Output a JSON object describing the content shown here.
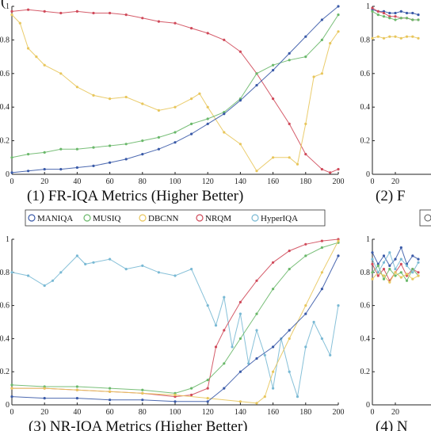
{
  "figure_label": "(",
  "colors": {
    "MANIQA": "#3a5aa8",
    "MUSIQ": "#6ab86a",
    "DBCNN": "#e8c65c",
    "NRQM": "#d04a5a",
    "HyperIQA": "#79b9d4"
  },
  "legend": {
    "items": [
      {
        "name": "MANIQA",
        "color": "#3a5aa8"
      },
      {
        "name": "MUSIQ",
        "color": "#6ab86a"
      },
      {
        "name": "DBCNN",
        "color": "#e8c65c"
      },
      {
        "name": "NRQM",
        "color": "#d04a5a"
      },
      {
        "name": "HyperIQA",
        "color": "#79b9d4"
      }
    ]
  },
  "chart_data": [
    {
      "type": "line",
      "title": "(1) FR-IQA Metrics (Higher Better)",
      "xlabel": "",
      "ylabel": "",
      "xlim": [
        0,
        200
      ],
      "ylim": [
        0,
        1
      ],
      "xticks": [
        0,
        20,
        40,
        60,
        80,
        100,
        120,
        140,
        160,
        180,
        200
      ],
      "yticks": [
        0,
        0.2,
        0.4,
        0.6,
        0.8,
        1
      ],
      "ytick_labels": [
        "0",
        "0.2",
        "0.4",
        "0.6",
        "0.8",
        "1"
      ],
      "grid": false,
      "series": [
        {
          "color": "#d04a5a",
          "x": [
            0,
            10,
            20,
            30,
            40,
            50,
            60,
            70,
            80,
            90,
            100,
            110,
            120,
            130,
            140,
            150,
            160,
            170,
            180,
            190,
            195,
            200
          ],
          "y": [
            0.97,
            0.98,
            0.97,
            0.96,
            0.97,
            0.96,
            0.96,
            0.95,
            0.93,
            0.91,
            0.9,
            0.87,
            0.84,
            0.8,
            0.73,
            0.6,
            0.45,
            0.3,
            0.12,
            0.03,
            0.01,
            0.03
          ]
        },
        {
          "color": "#e8c65c",
          "x": [
            0,
            5,
            10,
            15,
            20,
            30,
            40,
            50,
            60,
            70,
            80,
            90,
            100,
            110,
            115,
            120,
            130,
            140,
            150,
            160,
            170,
            175,
            180,
            185,
            190,
            195,
            200
          ],
          "y": [
            0.95,
            0.9,
            0.75,
            0.7,
            0.65,
            0.6,
            0.52,
            0.47,
            0.45,
            0.46,
            0.42,
            0.38,
            0.4,
            0.45,
            0.48,
            0.4,
            0.25,
            0.18,
            0.02,
            0.1,
            0.1,
            0.06,
            0.3,
            0.58,
            0.6,
            0.78,
            0.85
          ]
        },
        {
          "color": "#6ab86a",
          "x": [
            0,
            10,
            20,
            30,
            40,
            50,
            60,
            70,
            80,
            90,
            100,
            110,
            120,
            130,
            140,
            150,
            160,
            170,
            180,
            190,
            200
          ],
          "y": [
            0.1,
            0.12,
            0.13,
            0.15,
            0.15,
            0.16,
            0.17,
            0.18,
            0.2,
            0.22,
            0.25,
            0.3,
            0.33,
            0.37,
            0.45,
            0.6,
            0.65,
            0.68,
            0.7,
            0.8,
            0.95
          ]
        },
        {
          "color": "#3a5aa8",
          "x": [
            0,
            10,
            20,
            30,
            40,
            50,
            60,
            70,
            80,
            90,
            100,
            110,
            120,
            130,
            140,
            150,
            160,
            170,
            180,
            190,
            200
          ],
          "y": [
            0.01,
            0.02,
            0.03,
            0.03,
            0.04,
            0.05,
            0.07,
            0.09,
            0.12,
            0.15,
            0.19,
            0.24,
            0.3,
            0.36,
            0.44,
            0.53,
            0.62,
            0.72,
            0.82,
            0.92,
            1.0
          ]
        }
      ]
    },
    {
      "type": "line",
      "title": "(2) F",
      "xlim": [
        0,
        200
      ],
      "ylim": [
        0,
        1
      ],
      "xticks": [
        0,
        20
      ],
      "yticks": [
        0,
        0.2,
        0.4,
        0.6,
        0.8,
        1
      ],
      "ytick_labels": [
        "0",
        "0.2",
        "0.4",
        "0.6",
        "0.8",
        "1"
      ],
      "grid": false,
      "series": [
        {
          "color": "#3a5aa8",
          "x": [
            0,
            5,
            10,
            15,
            20,
            25,
            30,
            35,
            40
          ],
          "y": [
            0.98,
            0.97,
            0.97,
            0.96,
            0.96,
            0.97,
            0.96,
            0.96,
            0.95
          ]
        },
        {
          "color": "#d04a5a",
          "x": [
            0,
            5,
            10,
            15,
            20,
            25,
            30,
            35,
            40
          ],
          "y": [
            0.99,
            0.97,
            0.96,
            0.94,
            0.94,
            0.93,
            0.93,
            0.92,
            0.92
          ]
        },
        {
          "color": "#6ab86a",
          "x": [
            0,
            5,
            10,
            15,
            20,
            25,
            30,
            35,
            40
          ],
          "y": [
            0.97,
            0.95,
            0.94,
            0.93,
            0.92,
            0.93,
            0.93,
            0.92,
            0.92
          ]
        },
        {
          "color": "#e8c65c",
          "x": [
            0,
            5,
            10,
            15,
            20,
            25,
            30,
            35,
            40
          ],
          "y": [
            0.81,
            0.82,
            0.81,
            0.82,
            0.82,
            0.81,
            0.82,
            0.82,
            0.81
          ]
        }
      ]
    },
    {
      "type": "line",
      "title": "(3) NR-IQA Metrics (Higher Better)",
      "xlim": [
        0,
        200
      ],
      "ylim": [
        0,
        1
      ],
      "xticks": [
        0,
        20,
        40,
        60,
        80,
        100,
        120,
        140,
        160,
        180,
        200
      ],
      "yticks": [
        0,
        0.2,
        0.4,
        0.6,
        0.8,
        1
      ],
      "ytick_labels": [
        "0",
        "0.2",
        "0.4",
        "0.6",
        "0.8",
        "1"
      ],
      "grid": false,
      "series": [
        {
          "color": "#79b9d4",
          "x": [
            0,
            10,
            20,
            25,
            30,
            40,
            45,
            50,
            60,
            70,
            80,
            90,
            100,
            110,
            120,
            125,
            130,
            135,
            140,
            145,
            150,
            155,
            160,
            165,
            170,
            175,
            180,
            185,
            190,
            195,
            200
          ],
          "y": [
            0.8,
            0.78,
            0.72,
            0.75,
            0.8,
            0.9,
            0.85,
            0.86,
            0.88,
            0.82,
            0.84,
            0.8,
            0.78,
            0.82,
            0.6,
            0.48,
            0.65,
            0.35,
            0.55,
            0.25,
            0.45,
            0.3,
            0.1,
            0.4,
            0.2,
            0.05,
            0.35,
            0.5,
            0.4,
            0.3,
            0.6
          ]
        },
        {
          "color": "#d04a5a",
          "x": [
            0,
            20,
            40,
            60,
            80,
            100,
            110,
            120,
            125,
            130,
            140,
            150,
            160,
            170,
            180,
            190,
            200
          ],
          "y": [
            0.1,
            0.1,
            0.09,
            0.08,
            0.07,
            0.05,
            0.06,
            0.1,
            0.35,
            0.45,
            0.62,
            0.75,
            0.86,
            0.93,
            0.97,
            0.99,
            1.0
          ]
        },
        {
          "color": "#6ab86a",
          "x": [
            0,
            20,
            40,
            60,
            80,
            100,
            110,
            120,
            130,
            140,
            150,
            160,
            170,
            180,
            190,
            200
          ],
          "y": [
            0.12,
            0.11,
            0.11,
            0.1,
            0.09,
            0.07,
            0.1,
            0.15,
            0.25,
            0.4,
            0.55,
            0.7,
            0.82,
            0.9,
            0.95,
            0.98
          ]
        },
        {
          "color": "#e8c65c",
          "x": [
            0,
            20,
            40,
            60,
            80,
            100,
            120,
            140,
            150,
            155,
            160,
            170,
            180,
            190,
            200
          ],
          "y": [
            0.1,
            0.1,
            0.09,
            0.08,
            0.07,
            0.06,
            0.04,
            0.02,
            0.01,
            0.05,
            0.2,
            0.4,
            0.6,
            0.8,
            0.99
          ]
        },
        {
          "color": "#3a5aa8",
          "x": [
            0,
            20,
            40,
            60,
            80,
            100,
            120,
            130,
            140,
            150,
            160,
            170,
            180,
            190,
            200
          ],
          "y": [
            0.05,
            0.04,
            0.04,
            0.03,
            0.03,
            0.02,
            0.02,
            0.1,
            0.2,
            0.28,
            0.35,
            0.45,
            0.55,
            0.7,
            0.9
          ]
        }
      ]
    },
    {
      "type": "line",
      "title": "(4) N",
      "xlim": [
        0,
        200
      ],
      "ylim": [
        0,
        1
      ],
      "xticks": [
        0,
        20
      ],
      "yticks": [
        0,
        0.2,
        0.4,
        0.6,
        0.8,
        1
      ],
      "ytick_labels": [
        "0",
        "0.2",
        "0.4",
        "0.6",
        "0.8",
        "1"
      ],
      "grid": false,
      "series": [
        {
          "color": "#3a5aa8",
          "x": [
            0,
            5,
            10,
            15,
            20,
            25,
            30,
            35,
            40
          ],
          "y": [
            0.92,
            0.85,
            0.9,
            0.84,
            0.88,
            0.95,
            0.85,
            0.9,
            0.88
          ]
        },
        {
          "color": "#d04a5a",
          "x": [
            0,
            5,
            10,
            15,
            20,
            25,
            30,
            35,
            40
          ],
          "y": [
            0.85,
            0.78,
            0.82,
            0.75,
            0.8,
            0.85,
            0.78,
            0.82,
            0.8
          ]
        },
        {
          "color": "#6ab86a",
          "x": [
            0,
            5,
            10,
            15,
            20,
            25,
            30,
            35,
            40
          ],
          "y": [
            0.8,
            0.84,
            0.76,
            0.82,
            0.78,
            0.8,
            0.75,
            0.82,
            0.78
          ]
        },
        {
          "color": "#e8c65c",
          "x": [
            0,
            5,
            10,
            15,
            20,
            25,
            30,
            35,
            40
          ],
          "y": [
            0.76,
            0.8,
            0.78,
            0.74,
            0.8,
            0.77,
            0.79,
            0.76,
            0.78
          ]
        },
        {
          "color": "#79b9d4",
          "x": [
            0,
            5,
            10,
            15,
            20,
            25,
            30,
            35,
            40
          ],
          "y": [
            0.88,
            0.8,
            0.86,
            0.92,
            0.82,
            0.88,
            0.84,
            0.8,
            0.86
          ]
        }
      ]
    }
  ]
}
